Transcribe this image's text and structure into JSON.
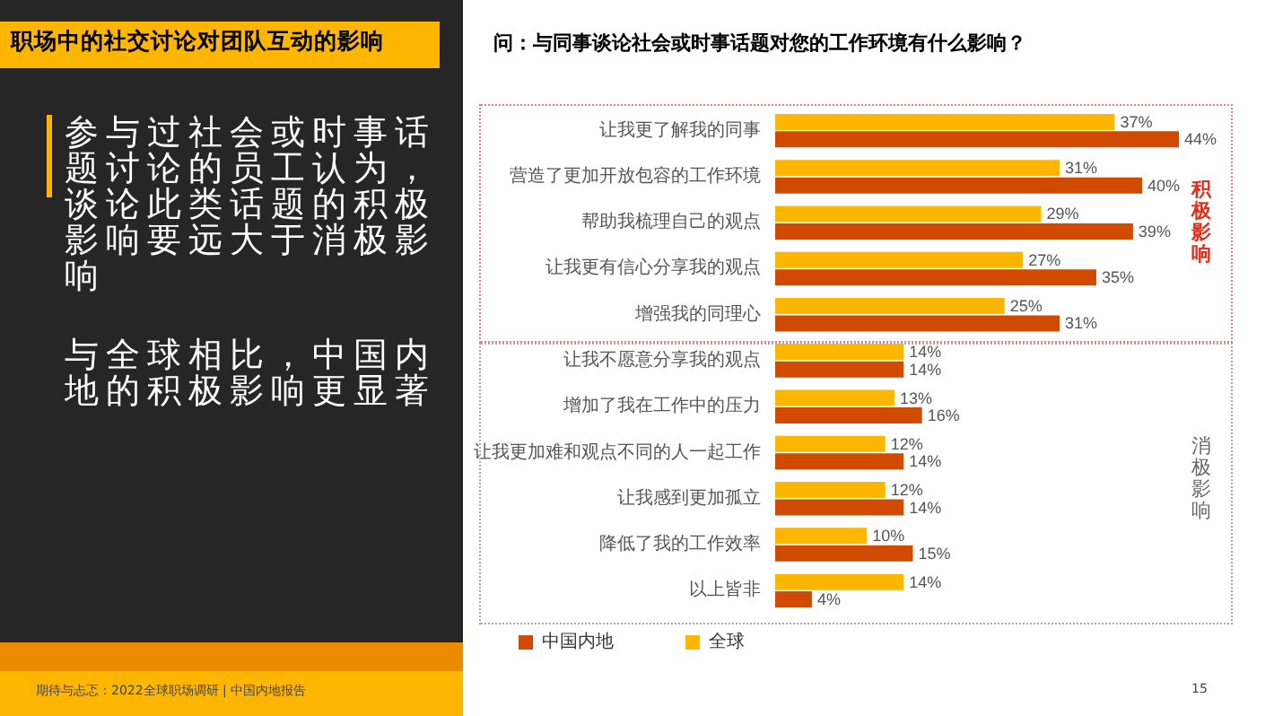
{
  "chart_data": {
    "type": "bar",
    "orientation": "horizontal",
    "title": "问：与同事谈论社会或时事话题对您的工作环境有什么影响？",
    "categories": [
      "让我更了解我的同事",
      "营造了更加开放包容的工作环境",
      "帮助我梳理自己的观点",
      "让我更有信心分享我的观点",
      "增强我的同理心",
      "让我不愿意分享我的观点",
      "增加了我在工作中的压力",
      "让我更加难和观点不同的人一起工作",
      "让我感到更加孤立",
      "降低了我的工作效率",
      "以上皆非"
    ],
    "series": [
      {
        "name": "中国内地",
        "color": "#d04a02",
        "values": [
          44,
          40,
          39,
          35,
          31,
          14,
          16,
          14,
          14,
          15,
          4
        ],
        "value_labels": [
          "44%",
          "40%",
          "39%",
          "35%",
          "31%",
          "14%",
          "16%",
          "14%",
          "14%",
          "15%",
          "4%"
        ]
      },
      {
        "name": "全球",
        "color": "#ffb600",
        "values": [
          37,
          31,
          29,
          27,
          25,
          14,
          13,
          12,
          12,
          10,
          14
        ],
        "value_labels": [
          "37%",
          "31%",
          "29%",
          "27%",
          "25%",
          "14%",
          "13%",
          "12%",
          "12%",
          "10%",
          "14%"
        ]
      }
    ],
    "legend": "bottom left",
    "annotations": [
      "职场中的社交讨论对团队互动的影响",
      "参与过社会或时事话题讨论的员工认为，谈论此类话题的积极影响要远大于消极影响",
      "与全球相比，中国内地的积极影响更显著",
      "积极影响",
      "消极影响",
      "期待与忐忑：2022全球职场调研 | 中国内地报告",
      "15"
    ]
  }
}
